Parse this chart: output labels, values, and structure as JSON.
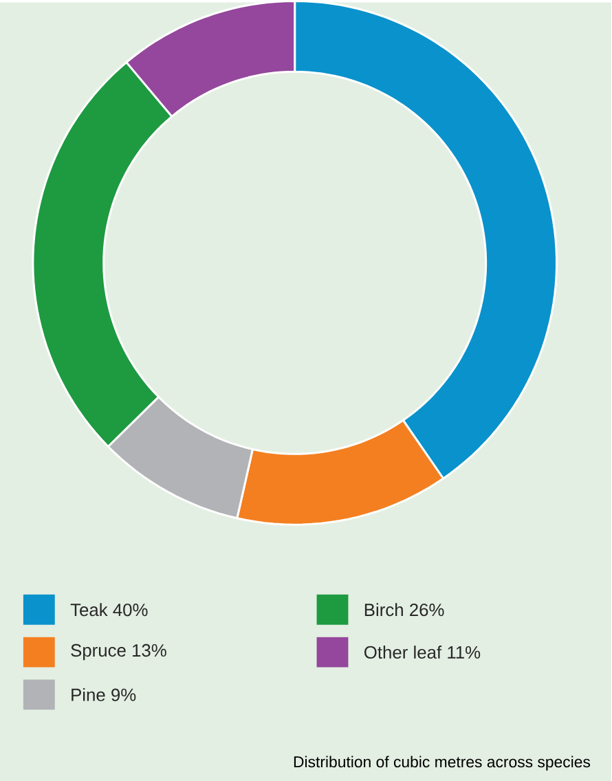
{
  "chart_data": {
    "type": "donut",
    "categories": [
      "Teak",
      "Spruce",
      "Pine",
      "Birch",
      "Other leaf"
    ],
    "values": [
      40,
      13,
      9,
      26,
      11
    ],
    "value_labels": [
      "40%",
      "13%",
      "9%",
      "26%",
      "11%"
    ],
    "colors": [
      "#0a92cc",
      "#f47f20",
      "#b1b3b6",
      "#1e9a41",
      "#94479c"
    ],
    "legend": "bottom",
    "annotations": [
      "Distribution of cubic metres across species"
    ]
  }
}
